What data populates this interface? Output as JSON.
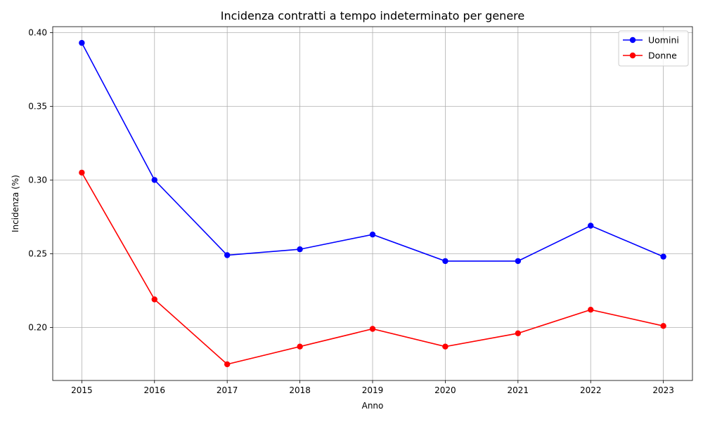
{
  "chart_data": {
    "type": "line",
    "title": "Incidenza contratti a tempo indeterminato per genere",
    "xlabel": "Anno",
    "ylabel": "Incidenza (%)",
    "x": [
      2015,
      2016,
      2017,
      2018,
      2019,
      2020,
      2021,
      2022,
      2023
    ],
    "x_tick_labels": [
      "2015",
      "2016",
      "2017",
      "2018",
      "2019",
      "2020",
      "2021",
      "2022",
      "2023"
    ],
    "y_ticks": [
      0.2,
      0.25,
      0.3,
      0.35,
      0.4
    ],
    "y_tick_labels": [
      "0.20",
      "0.25",
      "0.30",
      "0.35",
      "0.40"
    ],
    "xlim": [
      2014.6,
      2023.4
    ],
    "ylim": [
      0.164,
      0.404
    ],
    "grid": true,
    "legend_position": "top-right",
    "series": [
      {
        "name": "Uomini",
        "color": "#0000ff",
        "marker": "circle",
        "values": [
          0.393,
          0.3,
          0.249,
          0.253,
          0.263,
          0.245,
          0.245,
          0.269,
          0.248
        ]
      },
      {
        "name": "Donne",
        "color": "#ff0000",
        "marker": "circle",
        "values": [
          0.305,
          0.219,
          0.175,
          0.187,
          0.199,
          0.187,
          0.196,
          0.212,
          0.201
        ]
      }
    ]
  }
}
